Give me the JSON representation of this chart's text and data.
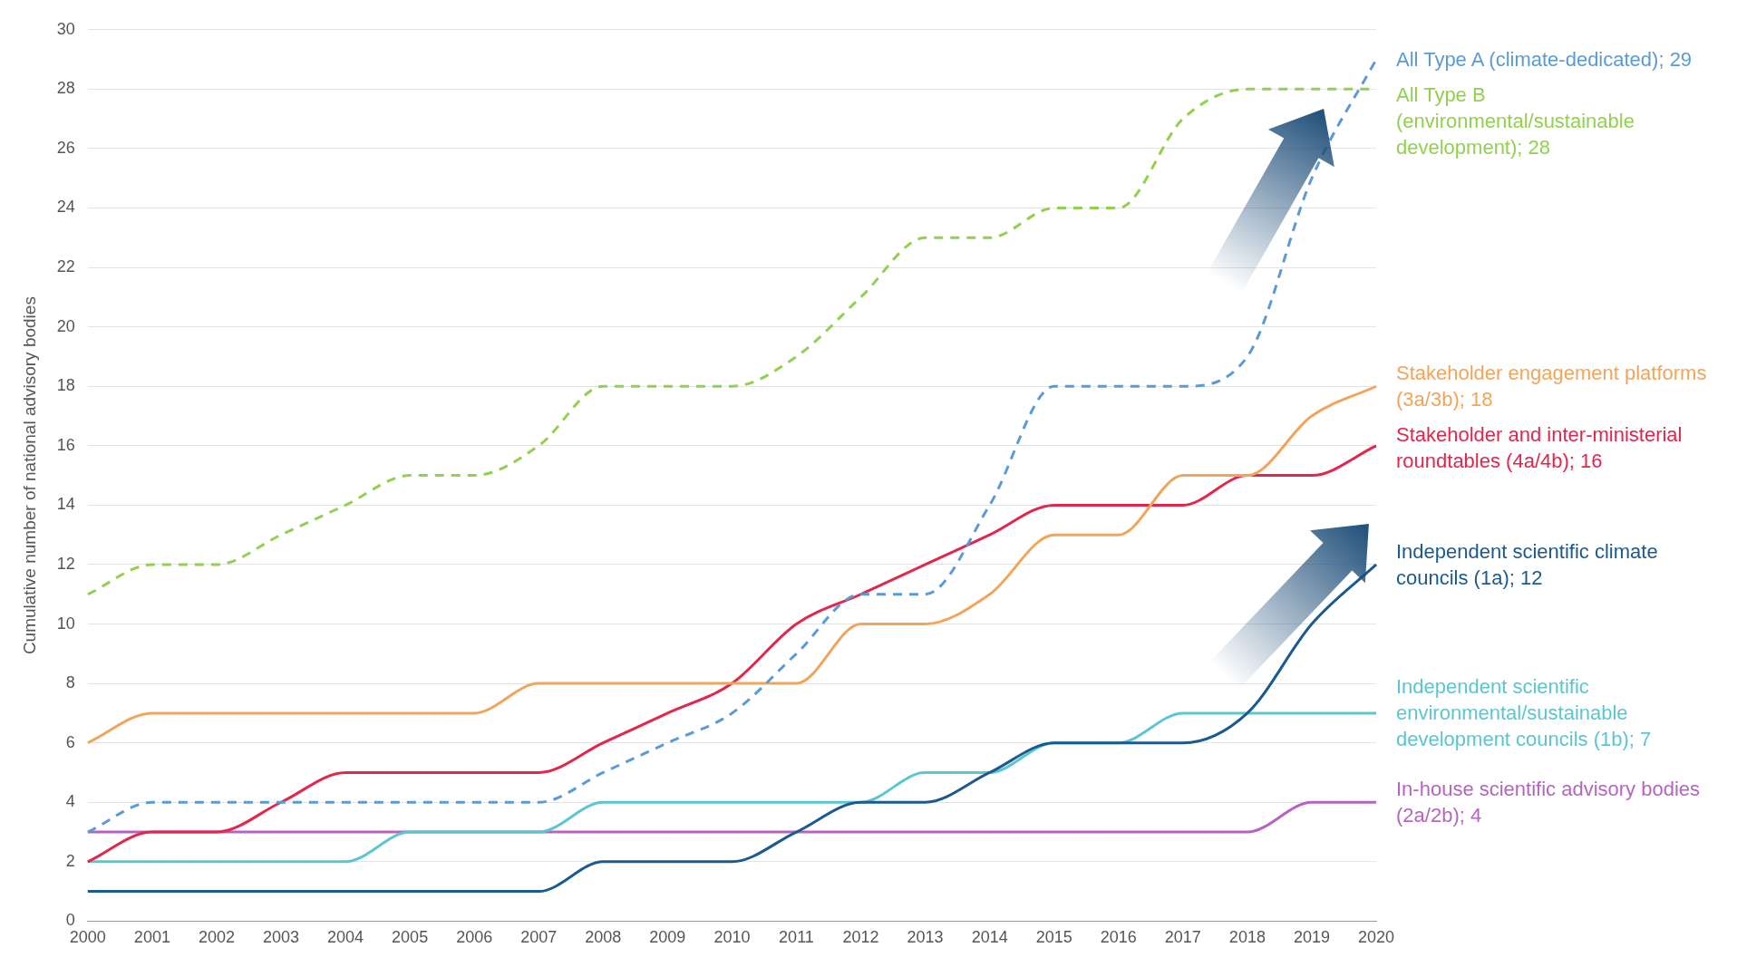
{
  "chart_data": {
    "type": "line",
    "ylabel": "Cumulative number of national advisory bodies",
    "categories": [
      "2000",
      "2001",
      "2002",
      "2003",
      "2004",
      "2005",
      "2006",
      "2007",
      "2008",
      "2009",
      "2010",
      "2011",
      "2012",
      "2013",
      "2014",
      "2015",
      "2016",
      "2017",
      "2018",
      "2019",
      "2020"
    ],
    "ylim": [
      0,
      30
    ],
    "yticks": [
      0,
      2,
      4,
      6,
      8,
      10,
      12,
      14,
      16,
      18,
      20,
      22,
      24,
      26,
      28,
      30
    ],
    "grid": "y",
    "marker": "none",
    "series": [
      {
        "name": "All Type A (climate-dedicated); 29",
        "color": "#5b9bd5",
        "line_style": "dashed",
        "values": [
          3,
          4,
          4,
          4,
          4,
          4,
          4,
          4,
          5,
          6,
          7,
          9,
          11,
          11,
          14,
          18,
          18,
          18,
          19,
          25,
          29
        ]
      },
      {
        "name": "All Type B (environmental/sustainable development); 28",
        "color": "#92d050",
        "line_style": "dashed",
        "values": [
          11,
          12,
          12,
          13,
          14,
          15,
          15,
          16,
          18,
          18,
          18,
          19,
          21,
          23,
          23,
          24,
          24,
          27,
          28,
          28,
          28
        ]
      },
      {
        "name": "Stakeholder engagement platforms (3a/3b); 18",
        "color": "#f0a55a",
        "line_style": "solid",
        "values": [
          6,
          7,
          7,
          7,
          7,
          7,
          7,
          8,
          8,
          8,
          8,
          8,
          10,
          10,
          11,
          13,
          13,
          15,
          15,
          17,
          18
        ]
      },
      {
        "name": "Stakeholder and inter-ministerial roundtables (4a/4b); 16",
        "color": "#e3264c",
        "line_style": "solid",
        "values": [
          2,
          3,
          3,
          4,
          5,
          5,
          5,
          5,
          6,
          7,
          8,
          10,
          11,
          12,
          13,
          14,
          14,
          14,
          15,
          15,
          16
        ]
      },
      {
        "name": "Independent scientific climate councils (1a); 12",
        "color": "#1b5a8e",
        "line_style": "solid",
        "values": [
          1,
          1,
          1,
          1,
          1,
          1,
          1,
          1,
          2,
          2,
          2,
          3,
          4,
          4,
          5,
          6,
          6,
          6,
          7,
          10,
          12
        ]
      },
      {
        "name": "Independent scientific environmental/sustainable development councils (1b); 7",
        "color": "#5bc6cf",
        "line_style": "solid",
        "values": [
          2,
          2,
          2,
          2,
          2,
          3,
          3,
          3,
          4,
          4,
          4,
          4,
          4,
          5,
          5,
          6,
          6,
          7,
          7,
          7,
          7
        ]
      },
      {
        "name": "In-house scientific advisory bodies (2a/2b); 4",
        "color": "#b565c0",
        "line_style": "solid",
        "values": [
          3,
          3,
          3,
          3,
          3,
          3,
          3,
          3,
          3,
          3,
          3,
          3,
          3,
          3,
          3,
          3,
          3,
          3,
          3,
          4,
          4
        ]
      }
    ]
  }
}
